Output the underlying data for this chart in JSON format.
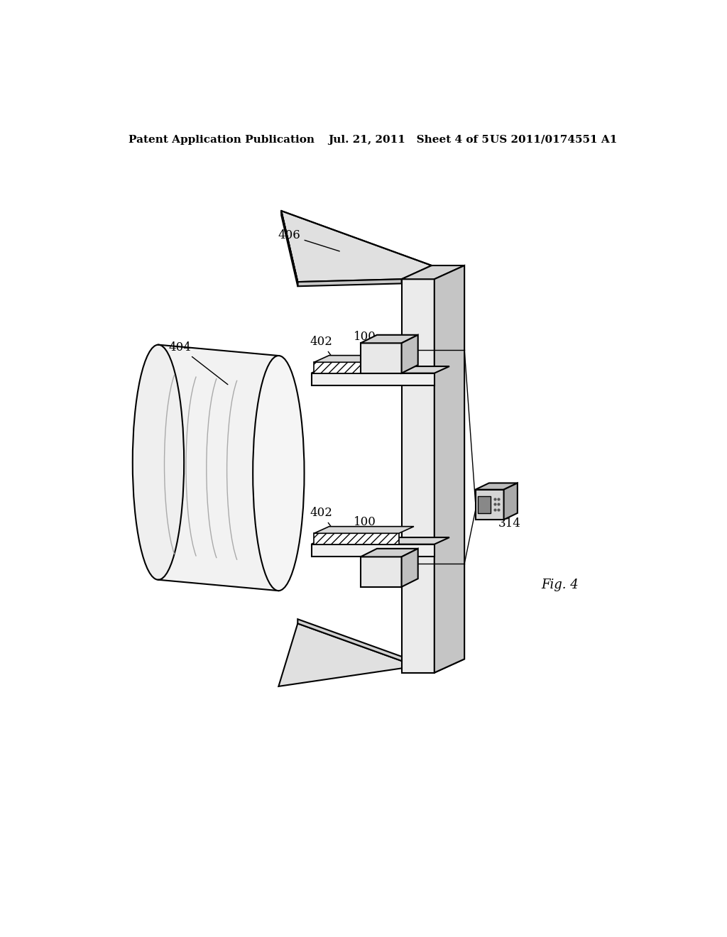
{
  "title": "Fig. 4",
  "header_left": "Patent Application Publication",
  "header_mid": "Jul. 21, 2011   Sheet 4 of 5",
  "header_right": "US 2011/0174551 A1",
  "bg_color": "#ffffff",
  "line_color": "#000000",
  "label_404": "404",
  "label_406": "406",
  "label_402a": "402",
  "label_402b": "402",
  "label_100a": "100",
  "label_100b": "100",
  "label_314": "314",
  "fig_label": "Fig. 4"
}
